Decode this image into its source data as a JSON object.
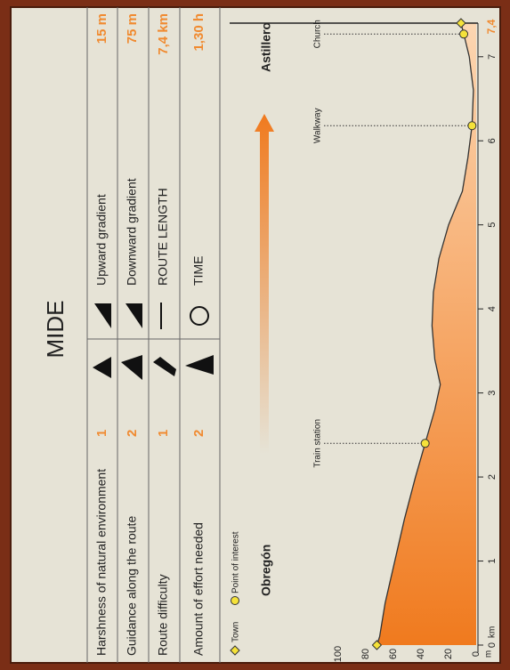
{
  "header": {
    "title": "MIDE"
  },
  "table": {
    "left": [
      {
        "label": "Harshness of natural environment",
        "value": "1"
      },
      {
        "label": "Guidance along the route",
        "value": "2"
      },
      {
        "label": "Route difficulty",
        "value": "1"
      },
      {
        "label": "Amount of effort needed",
        "value": "2"
      }
    ],
    "right": [
      {
        "label": "Upward gradient",
        "value": "15 m"
      },
      {
        "label": "Downward gradient",
        "value": "75 m"
      },
      {
        "label": "ROUTE LENGTH",
        "value": "7,4 km"
      },
      {
        "label": "TIME",
        "value": "1,30 h"
      }
    ]
  },
  "chart_data": {
    "type": "area",
    "legend": {
      "town": "Town",
      "poi": "Point of interest"
    },
    "x_unit": "km",
    "y_unit": "m",
    "x": [
      0,
      0.1,
      0.5,
      1,
      1.5,
      2,
      2.4,
      2.8,
      3.1,
      3.4,
      3.8,
      4.2,
      4.6,
      5,
      5.4,
      5.8,
      6.18,
      6.6,
      7,
      7.27,
      7.4
    ],
    "values": [
      72,
      70,
      66,
      59,
      52,
      44,
      37,
      30,
      26,
      30,
      32,
      31,
      27,
      20,
      10,
      6,
      3,
      2,
      5,
      9,
      11
    ],
    "towns": [
      {
        "name": "Obregón",
        "x": 0,
        "y": 72
      },
      {
        "name": "Astillero",
        "x": 7.4,
        "y": 11
      }
    ],
    "points": [
      {
        "name": "Train station",
        "x": 2.4,
        "y": 37
      },
      {
        "name": "Walkway",
        "x": 6.18,
        "y": 3
      },
      {
        "name": "Church",
        "x": 7.27,
        "y": 9
      }
    ],
    "xlim": [
      0,
      7.4
    ],
    "xticks": [
      0,
      1,
      2,
      3,
      4,
      5,
      6,
      7
    ],
    "end_tick": {
      "value": 7.4,
      "label": "7,4"
    },
    "ylim": [
      0,
      100
    ],
    "yticks": [
      0,
      20,
      40,
      60,
      80,
      100
    ]
  }
}
